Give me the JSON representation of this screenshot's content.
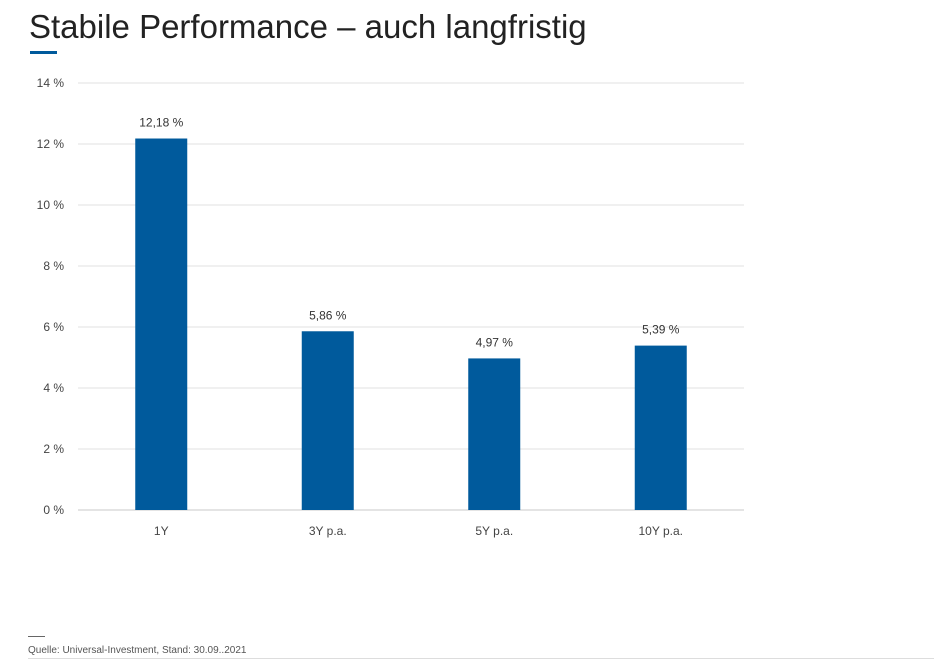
{
  "header": {
    "title": "Stabile Performance – auch langfristig",
    "accent_color": "#005a9c"
  },
  "chart_data": {
    "type": "bar",
    "categories": [
      "1Y",
      "3Y p.a.",
      "5Y p.a.",
      "10Y p.a."
    ],
    "values": [
      12.18,
      5.86,
      4.97,
      5.39
    ],
    "value_labels": [
      "12,18 %",
      "5,86 %",
      "4,97 %",
      "5,39 %"
    ],
    "yticks": [
      0,
      2,
      4,
      6,
      8,
      10,
      12,
      14
    ],
    "ytick_labels": [
      "0 %",
      "2 %",
      "4 %",
      "6 %",
      "8 %",
      "10 %",
      "12 %",
      "14 %"
    ],
    "ylim": [
      0,
      14
    ],
    "grid": true,
    "bar_color": "#005a9c",
    "title": "",
    "xlabel": "",
    "ylabel": ""
  },
  "footer": {
    "source": "Quelle: Universal-Investment, Stand: 30.09..2021"
  }
}
